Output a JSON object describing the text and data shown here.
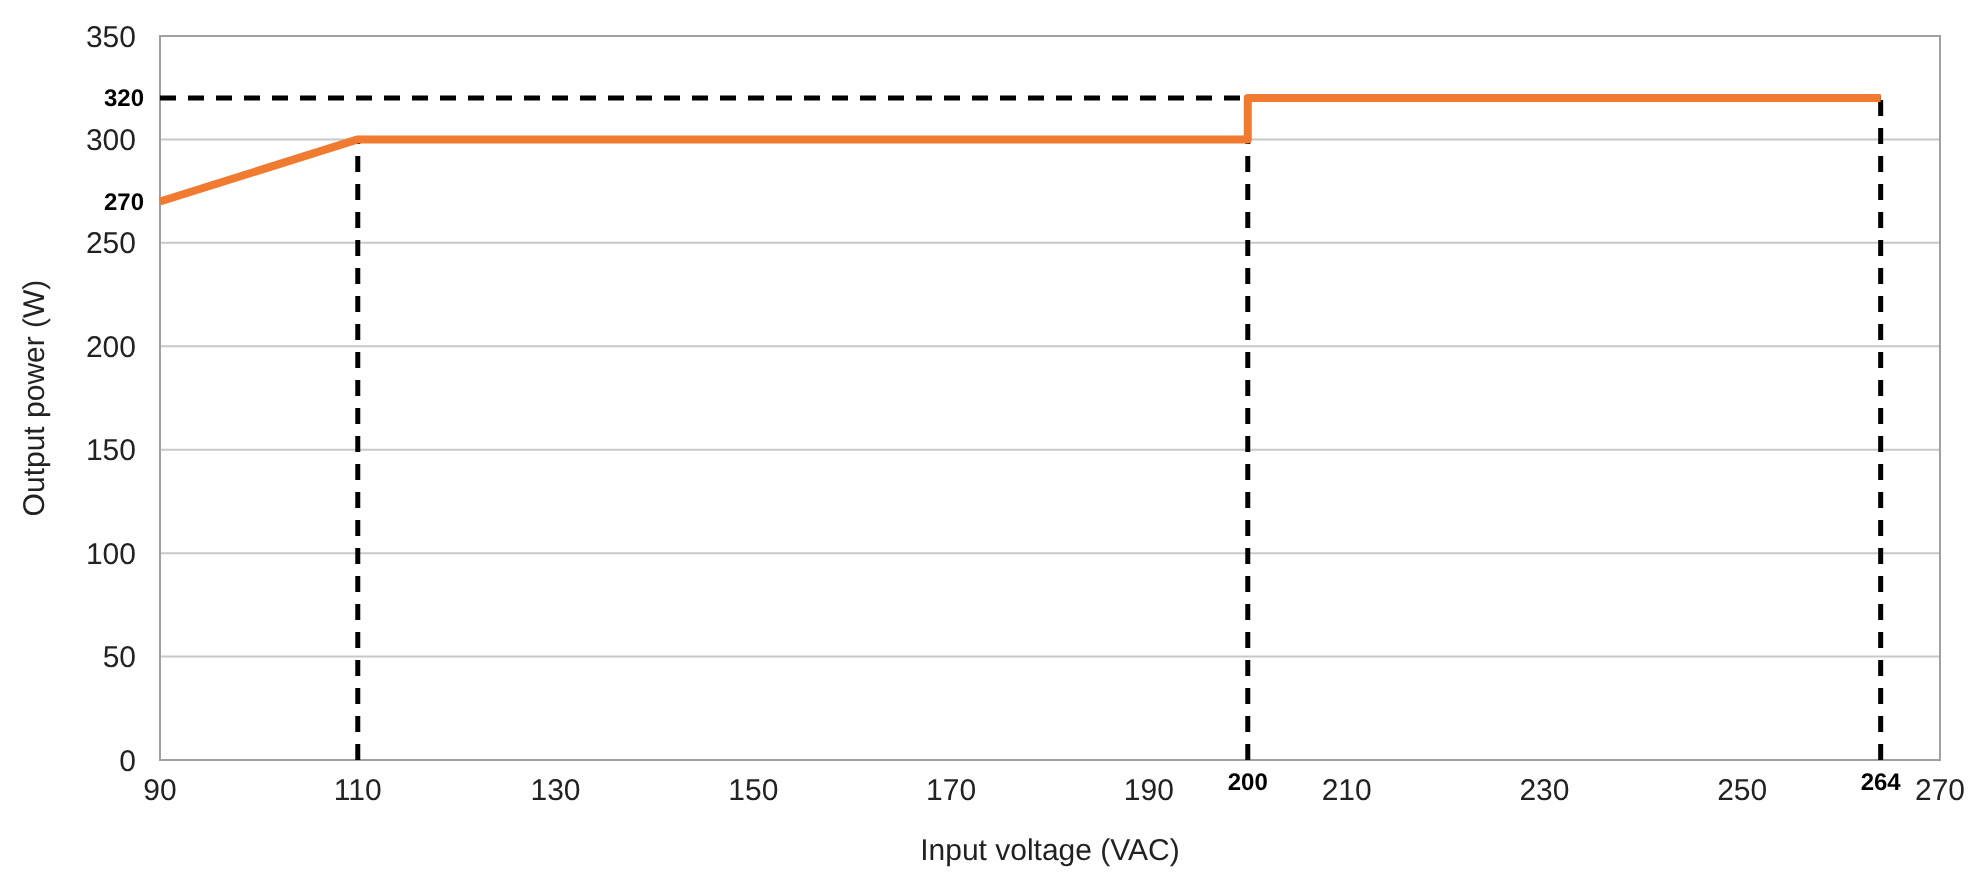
{
  "chart_data": {
    "type": "line",
    "xlabel": "Input voltage (VAC)",
    "ylabel": "Output power (W)",
    "x": [
      90,
      110,
      200,
      200,
      264
    ],
    "series": [
      {
        "color": "#f07a2f",
        "values": [
          270,
          300,
          300,
          320,
          320
        ]
      }
    ],
    "xlim": [
      90,
      270
    ],
    "xticks": [
      90,
      110,
      130,
      150,
      170,
      190,
      210,
      230,
      250,
      270
    ],
    "ylim": [
      0,
      350
    ],
    "yticks": [
      0,
      50,
      100,
      150,
      200,
      250,
      300,
      350
    ],
    "grid": "y",
    "marker": "none",
    "line_style": "solid",
    "ref_lines": [
      {
        "axis": "x",
        "value": 110,
        "line_style": "dashed",
        "color": "#000000"
      },
      {
        "axis": "x",
        "value": 200,
        "label": "200",
        "line_style": "dashed",
        "color": "#000000"
      },
      {
        "axis": "x",
        "value": 264,
        "label": "264",
        "line_style": "dashed",
        "color": "#000000"
      },
      {
        "axis": "y",
        "value": 320,
        "label": "320",
        "line_style": "dashed",
        "color": "#000000"
      }
    ],
    "annotations": [
      {
        "text": "270",
        "x": 90,
        "y": 270
      }
    ]
  }
}
